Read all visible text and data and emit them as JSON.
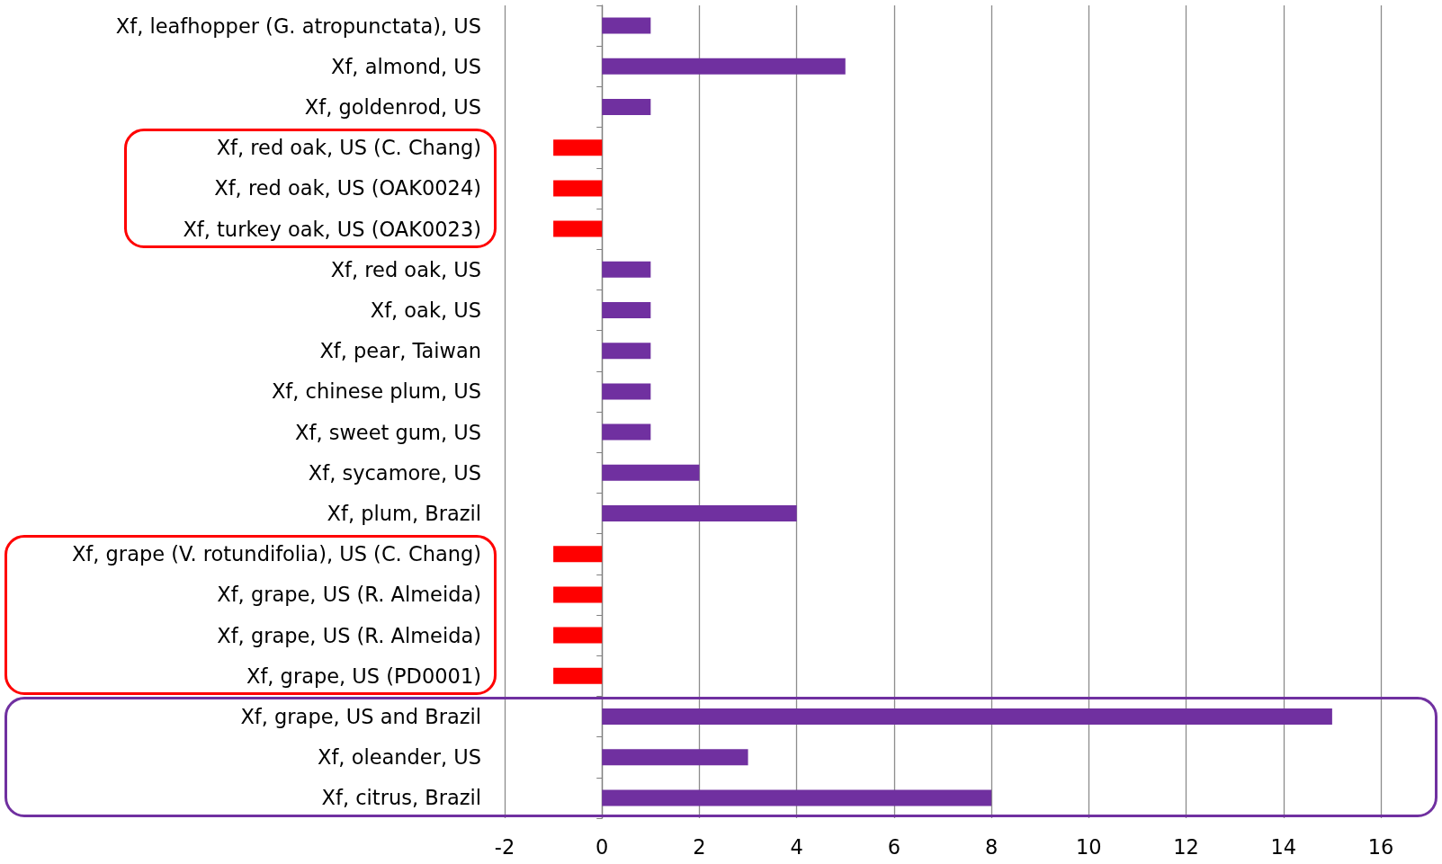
{
  "chart_data": {
    "type": "bar",
    "orientation": "horizontal",
    "categories": [
      "Xf, leafhopper (G. atropunctata), US",
      "Xf, almond, US",
      "Xf, goldenrod, US",
      "Xf, red oak, US (C. Chang)",
      "Xf, red oak, US (OAK0024)",
      "Xf, turkey oak, US (OAK0023)",
      "Xf, red oak, US",
      "Xf, oak, US",
      "Xf, pear, Taiwan",
      "Xf, chinese plum, US",
      "Xf, sweet gum, US",
      "Xf, sycamore, US",
      "Xf, plum, Brazil",
      "Xf, grape (V. rotundifolia), US (C. Chang)",
      "Xf, grape, US (R. Almeida)",
      "Xf, grape, US (R. Almeida)",
      "Xf, grape, US (PD0001)",
      "Xf, grape, US and Brazil",
      "Xf, oleander, US",
      "Xf, citrus, Brazil"
    ],
    "values": [
      1,
      5,
      1,
      -1,
      -1,
      -1,
      1,
      1,
      1,
      1,
      1,
      2,
      4,
      -1,
      -1,
      -1,
      -1,
      15,
      3,
      8
    ],
    "colors": [
      "#7030a0",
      "#7030a0",
      "#7030a0",
      "#ff0000",
      "#ff0000",
      "#ff0000",
      "#7030a0",
      "#7030a0",
      "#7030a0",
      "#7030a0",
      "#7030a0",
      "#7030a0",
      "#7030a0",
      "#ff0000",
      "#ff0000",
      "#ff0000",
      "#ff0000",
      "#7030a0",
      "#7030a0",
      "#7030a0"
    ],
    "xlim": [
      -2,
      16
    ],
    "xticks": [
      -2,
      0,
      2,
      4,
      6,
      8,
      10,
      12,
      14,
      16
    ],
    "grid": "x"
  }
}
